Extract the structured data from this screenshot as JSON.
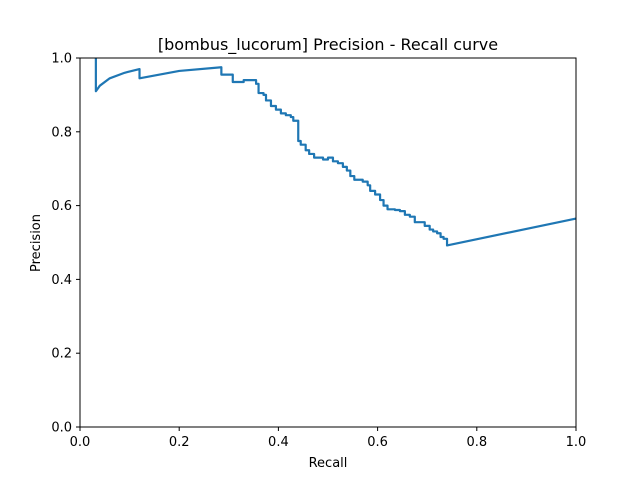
{
  "chart_data": {
    "type": "line",
    "title": "[bombus_lucorum] Precision - Recall curve",
    "xlabel": "Recall",
    "ylabel": "Precision",
    "xlim": [
      0.0,
      1.0
    ],
    "ylim": [
      0.0,
      1.0
    ],
    "x_ticks": [
      "0.0",
      "0.2",
      "0.4",
      "0.6",
      "0.8",
      "1.0"
    ],
    "y_ticks": [
      "0.0",
      "0.2",
      "0.4",
      "0.6",
      "0.8",
      "1.0"
    ],
    "grid": false,
    "legend": "none",
    "series": [
      {
        "color": "#1f77b4",
        "points": [
          [
            0.032,
            1.0
          ],
          [
            0.032,
            0.91
          ],
          [
            0.04,
            0.925
          ],
          [
            0.06,
            0.945
          ],
          [
            0.09,
            0.96
          ],
          [
            0.12,
            0.97
          ],
          [
            0.12,
            0.945
          ],
          [
            0.2,
            0.965
          ],
          [
            0.285,
            0.975
          ],
          [
            0.285,
            0.955
          ],
          [
            0.308,
            0.955
          ],
          [
            0.308,
            0.935
          ],
          [
            0.33,
            0.935
          ],
          [
            0.33,
            0.94
          ],
          [
            0.355,
            0.94
          ],
          [
            0.355,
            0.93
          ],
          [
            0.36,
            0.93
          ],
          [
            0.36,
            0.905
          ],
          [
            0.37,
            0.905
          ],
          [
            0.37,
            0.9
          ],
          [
            0.375,
            0.9
          ],
          [
            0.375,
            0.885
          ],
          [
            0.385,
            0.885
          ],
          [
            0.385,
            0.87
          ],
          [
            0.395,
            0.87
          ],
          [
            0.395,
            0.86
          ],
          [
            0.405,
            0.86
          ],
          [
            0.405,
            0.85
          ],
          [
            0.415,
            0.85
          ],
          [
            0.415,
            0.845
          ],
          [
            0.425,
            0.845
          ],
          [
            0.425,
            0.84
          ],
          [
            0.43,
            0.84
          ],
          [
            0.43,
            0.83
          ],
          [
            0.44,
            0.83
          ],
          [
            0.44,
            0.775
          ],
          [
            0.445,
            0.775
          ],
          [
            0.445,
            0.765
          ],
          [
            0.455,
            0.765
          ],
          [
            0.455,
            0.75
          ],
          [
            0.462,
            0.75
          ],
          [
            0.462,
            0.74
          ],
          [
            0.472,
            0.74
          ],
          [
            0.472,
            0.73
          ],
          [
            0.49,
            0.73
          ],
          [
            0.49,
            0.725
          ],
          [
            0.5,
            0.725
          ],
          [
            0.5,
            0.73
          ],
          [
            0.51,
            0.73
          ],
          [
            0.51,
            0.72
          ],
          [
            0.52,
            0.72
          ],
          [
            0.52,
            0.715
          ],
          [
            0.53,
            0.715
          ],
          [
            0.53,
            0.705
          ],
          [
            0.538,
            0.705
          ],
          [
            0.538,
            0.695
          ],
          [
            0.545,
            0.695
          ],
          [
            0.545,
            0.68
          ],
          [
            0.553,
            0.68
          ],
          [
            0.553,
            0.67
          ],
          [
            0.57,
            0.67
          ],
          [
            0.57,
            0.665
          ],
          [
            0.58,
            0.665
          ],
          [
            0.58,
            0.655
          ],
          [
            0.585,
            0.655
          ],
          [
            0.585,
            0.64
          ],
          [
            0.595,
            0.64
          ],
          [
            0.595,
            0.63
          ],
          [
            0.605,
            0.63
          ],
          [
            0.605,
            0.615
          ],
          [
            0.612,
            0.615
          ],
          [
            0.612,
            0.6
          ],
          [
            0.62,
            0.6
          ],
          [
            0.62,
            0.59
          ],
          [
            0.635,
            0.59
          ],
          [
            0.635,
            0.588
          ],
          [
            0.645,
            0.588
          ],
          [
            0.645,
            0.585
          ],
          [
            0.655,
            0.585
          ],
          [
            0.655,
            0.575
          ],
          [
            0.665,
            0.575
          ],
          [
            0.665,
            0.57
          ],
          [
            0.675,
            0.57
          ],
          [
            0.675,
            0.555
          ],
          [
            0.695,
            0.555
          ],
          [
            0.695,
            0.545
          ],
          [
            0.705,
            0.545
          ],
          [
            0.705,
            0.535
          ],
          [
            0.712,
            0.535
          ],
          [
            0.712,
            0.53
          ],
          [
            0.72,
            0.53
          ],
          [
            0.72,
            0.525
          ],
          [
            0.727,
            0.525
          ],
          [
            0.727,
            0.515
          ],
          [
            0.733,
            0.515
          ],
          [
            0.733,
            0.51
          ],
          [
            0.74,
            0.51
          ],
          [
            0.74,
            0.492
          ],
          [
            1.0,
            0.565
          ]
        ]
      }
    ]
  }
}
